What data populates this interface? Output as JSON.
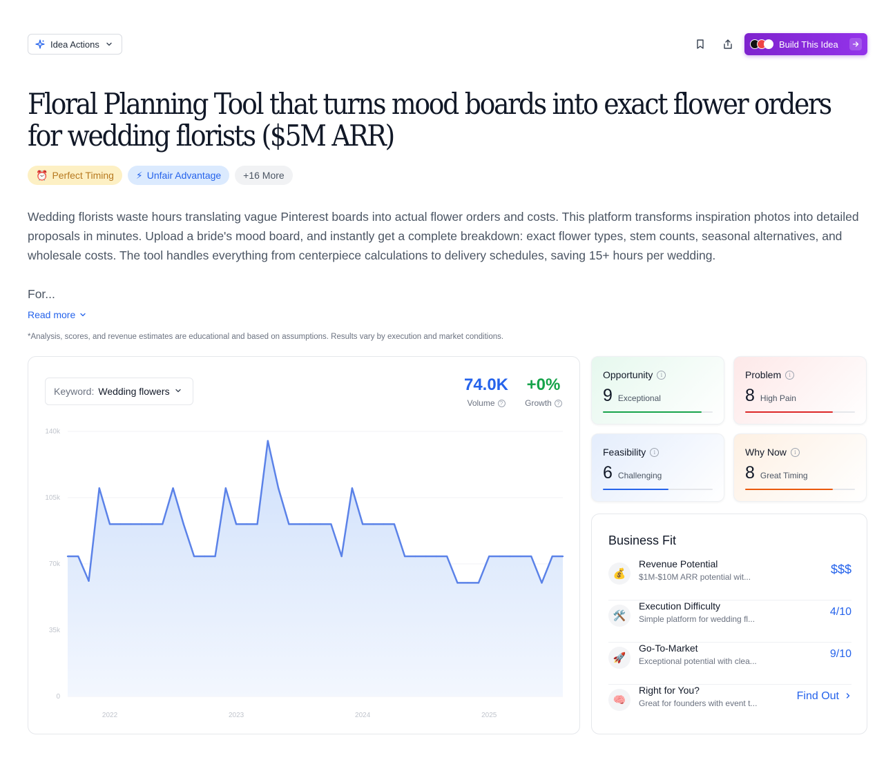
{
  "topbar": {
    "idea_actions_label": "Idea Actions",
    "build_label": "Build This Idea"
  },
  "idea": {
    "title": "Floral Planning Tool that turns mood boards into exact flower orders for wedding florists ($5M ARR)",
    "tags": [
      {
        "icon": "alarm-clock-icon",
        "label": "Perfect Timing"
      },
      {
        "icon": "lightning-icon",
        "label": "Unfair Advantage"
      },
      {
        "label": "+16 More"
      }
    ],
    "description": "Wedding florists waste hours translating vague Pinterest boards into actual flower orders and costs. This platform transforms inspiration photos into detailed proposals in minutes. Upload a bride's mood board, and instantly get a complete breakdown: exact flower types, stem counts, seasonal alternatives, and wholesale costs. The tool handles everything from centerpiece calculations to delivery schedules, saving 15+ hours per wedding.",
    "description_more": "For...",
    "read_more": "Read more",
    "disclaimer": "*Analysis, scores, and revenue estimates are educational and based on assumptions. Results vary by execution and market conditions."
  },
  "trend": {
    "keyword_label": "Keyword:",
    "keyword_value": "Wedding flowers",
    "volume_value": "74.0K",
    "volume_label": "Volume",
    "growth_value": "+0%",
    "growth_label": "Growth",
    "colors": {
      "volume": "#2563eb",
      "growth": "#16a34a",
      "line": "#5b82e8"
    }
  },
  "chart_data": {
    "type": "area",
    "title": "",
    "xlabel": "",
    "ylabel": "",
    "ylim": [
      0,
      140000
    ],
    "y_ticks": [
      "0",
      "35k",
      "70k",
      "105k",
      "140k"
    ],
    "x_ticks": [
      "2022",
      "2023",
      "2024",
      "2025"
    ],
    "x": [
      "2021-09",
      "2021-10",
      "2021-11",
      "2021-12",
      "2022-01",
      "2022-02",
      "2022-03",
      "2022-04",
      "2022-05",
      "2022-06",
      "2022-07",
      "2022-08",
      "2022-09",
      "2022-10",
      "2022-11",
      "2022-12",
      "2023-01",
      "2023-02",
      "2023-03",
      "2023-04",
      "2023-05",
      "2023-06",
      "2023-07",
      "2023-08",
      "2023-09",
      "2023-10",
      "2023-11",
      "2023-12",
      "2024-01",
      "2024-02",
      "2024-03",
      "2024-04",
      "2024-05",
      "2024-06",
      "2024-07",
      "2024-08",
      "2024-09",
      "2024-10",
      "2024-11",
      "2024-12",
      "2025-01",
      "2025-02",
      "2025-03",
      "2025-04",
      "2025-05",
      "2025-06",
      "2025-07",
      "2025-08"
    ],
    "series": [
      {
        "values": [
          74000,
          74000,
          61000,
          110000,
          91000,
          91000,
          91000,
          91000,
          91000,
          91000,
          110000,
          91000,
          74000,
          74000,
          74000,
          110000,
          91000,
          91000,
          91000,
          135000,
          110000,
          91000,
          91000,
          91000,
          91000,
          91000,
          74000,
          110000,
          91000,
          91000,
          91000,
          91000,
          74000,
          74000,
          74000,
          74000,
          74000,
          60000,
          60000,
          60000,
          74000,
          74000,
          74000,
          74000,
          74000,
          60000,
          74000,
          74000
        ]
      }
    ],
    "grid": true
  },
  "scores": [
    {
      "title": "Opportunity",
      "value": "9",
      "label": "Exceptional",
      "fraction": 0.9,
      "color": "#16a34a",
      "bg_from": "#e6f8ee",
      "bg_to": "#ffffff"
    },
    {
      "title": "Problem",
      "value": "8",
      "label": "High Pain",
      "fraction": 0.8,
      "color": "#dc2626",
      "bg_from": "#fde8e8",
      "bg_to": "#ffffff"
    },
    {
      "title": "Feasibility",
      "value": "6",
      "label": "Challenging",
      "fraction": 0.6,
      "color": "#2563eb",
      "bg_from": "#e4edfc",
      "bg_to": "#ffffff"
    },
    {
      "title": "Why Now",
      "value": "8",
      "label": "Great Timing",
      "fraction": 0.8,
      "color": "#ea580c",
      "bg_from": "#fdf0e3",
      "bg_to": "#ffffff"
    }
  ],
  "business_fit": {
    "title": "Business Fit",
    "rows": [
      {
        "icon": "money-bag-icon",
        "name": "Revenue Potential",
        "desc": "$1M-$10M ARR potential wit...",
        "value": "$$$"
      },
      {
        "icon": "tools-icon",
        "name": "Execution Difficulty",
        "desc": "Simple platform for wedding fl...",
        "value": "4/10"
      },
      {
        "icon": "rocket-icon",
        "name": "Go-To-Market",
        "desc": "Exceptional potential with clea...",
        "value": "9/10"
      },
      {
        "icon": "brain-icon",
        "name": "Right for You?",
        "desc": "Great for founders with event t...",
        "value": "Find Out"
      }
    ]
  }
}
